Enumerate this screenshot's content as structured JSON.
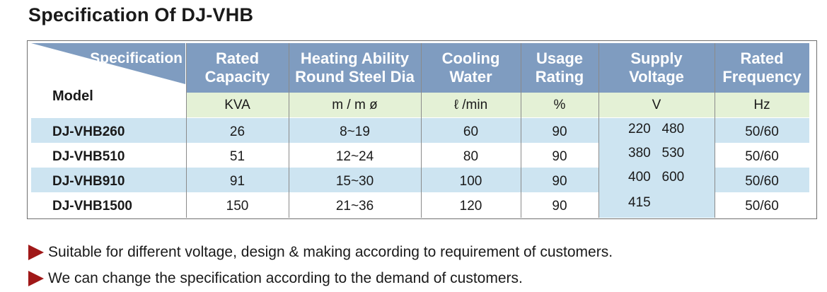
{
  "title": "Specification Of DJ-VHB",
  "corner": {
    "spec_label": "Specification",
    "model_label": "Model"
  },
  "columns": [
    {
      "line1": "Rated",
      "line2": "Capacity",
      "unit": "KVA"
    },
    {
      "line1": "Heating Ability",
      "line2": "Round Steel Dia",
      "unit": "m / m ø"
    },
    {
      "line1": "Cooling",
      "line2": "Water",
      "unit": "ℓ /min"
    },
    {
      "line1": "Usage",
      "line2": "Rating",
      "unit": "%"
    },
    {
      "line1": "Supply",
      "line2": "Voltage",
      "unit": "V"
    },
    {
      "line1": "Rated",
      "line2": "Frequency",
      "unit": "Hz"
    }
  ],
  "rows": [
    {
      "model": "DJ-VHB260",
      "capacity": "26",
      "diameter": "8~19",
      "water": "60",
      "usage": "90",
      "frequency": "50/60"
    },
    {
      "model": "DJ-VHB510",
      "capacity": "51",
      "diameter": "12~24",
      "water": "80",
      "usage": "90",
      "frequency": "50/60"
    },
    {
      "model": "DJ-VHB910",
      "capacity": "91",
      "diameter": "15~30",
      "water": "100",
      "usage": "90",
      "frequency": "50/60"
    },
    {
      "model": "DJ-VHB1500",
      "capacity": "150",
      "diameter": "21~36",
      "water": "120",
      "usage": "90",
      "frequency": "50/60"
    }
  ],
  "voltage_lines": [
    "220   480",
    "380   530",
    "400   600",
    "415"
  ],
  "notes": [
    "Suitable for different voltage, design & making according to requirement of customers.",
    "We can change the specification according to the demand of customers."
  ],
  "colors": {
    "header_blue": "#7f9cc0",
    "unit_green": "#e4f1d6",
    "row_blue": "#cde4f1",
    "bullet_red": "#a01818"
  }
}
